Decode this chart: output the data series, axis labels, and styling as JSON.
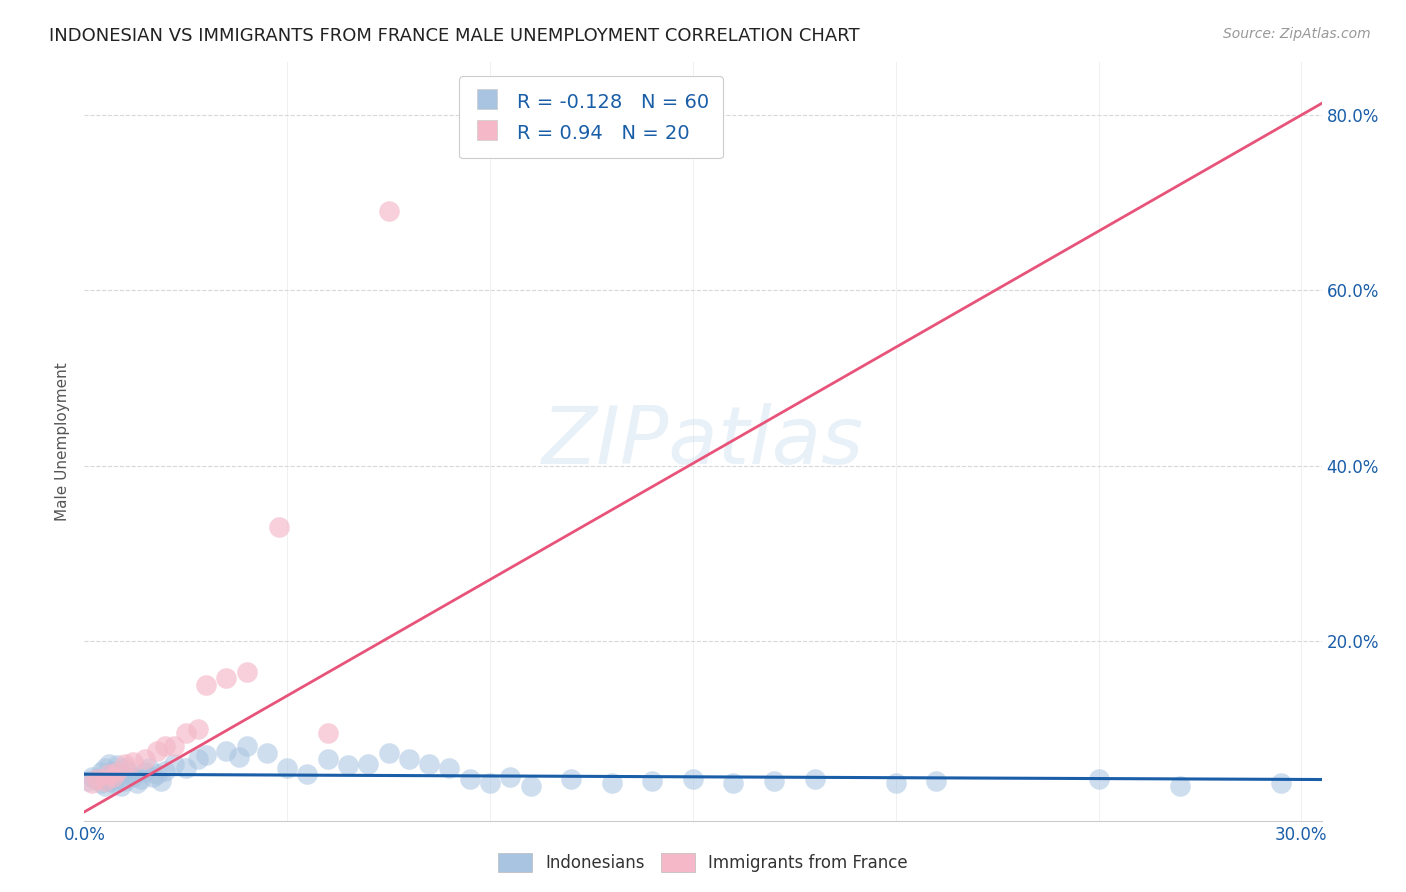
{
  "title": "INDONESIAN VS IMMIGRANTS FROM FRANCE MALE UNEMPLOYMENT CORRELATION CHART",
  "source": "Source: ZipAtlas.com",
  "ylabel": "Male Unemployment",
  "xlim": [
    0.0,
    0.305
  ],
  "ylim": [
    -0.005,
    0.86
  ],
  "background_color": "#ffffff",
  "watermark_text": "ZIPatlas",
  "legend1_label": "R = -0.128   N = 60",
  "legend2_label": "R = 0.940   N = 20",
  "legend_bottom_label1": "Indonesians",
  "legend_bottom_label2": "Immigrants from France",
  "indonesian_color": "#a8c4e0",
  "france_color": "#f4b8c8",
  "indonesian_line_color": "#1a5ea8",
  "france_line_color": "#e8537a",
  "grey_dash_color": "#bbbbbb",
  "grid_color": "#d8d8d8",
  "tick_color": "#1a5ea8",
  "title_color": "#222222",
  "source_color": "#999999",
  "ylabel_color": "#555555",
  "indonesian_R": -0.128,
  "indonesia_N": 60,
  "france_R": 0.94,
  "france_N": 20,
  "blue_slope": -0.02,
  "blue_intercept": 0.048,
  "pink_slope": 2.65,
  "pink_intercept": 0.005,
  "x_indo": [
    0.001,
    0.002,
    0.003,
    0.004,
    0.004,
    0.005,
    0.005,
    0.006,
    0.006,
    0.007,
    0.007,
    0.008,
    0.008,
    0.009,
    0.009,
    0.01,
    0.01,
    0.011,
    0.012,
    0.013,
    0.014,
    0.015,
    0.016,
    0.017,
    0.018,
    0.019,
    0.02,
    0.022,
    0.025,
    0.028,
    0.03,
    0.035,
    0.038,
    0.04,
    0.045,
    0.05,
    0.055,
    0.06,
    0.065,
    0.07,
    0.075,
    0.08,
    0.085,
    0.09,
    0.095,
    0.1,
    0.105,
    0.11,
    0.12,
    0.13,
    0.14,
    0.15,
    0.16,
    0.17,
    0.18,
    0.2,
    0.21,
    0.25,
    0.27,
    0.295
  ],
  "y_indo": [
    0.04,
    0.045,
    0.042,
    0.038,
    0.05,
    0.035,
    0.055,
    0.04,
    0.06,
    0.038,
    0.052,
    0.042,
    0.058,
    0.035,
    0.048,
    0.04,
    0.055,
    0.05,
    0.045,
    0.038,
    0.042,
    0.05,
    0.055,
    0.045,
    0.048,
    0.04,
    0.052,
    0.06,
    0.055,
    0.065,
    0.07,
    0.075,
    0.068,
    0.08,
    0.072,
    0.055,
    0.048,
    0.065,
    0.058,
    0.06,
    0.072,
    0.065,
    0.06,
    0.055,
    0.042,
    0.038,
    0.045,
    0.035,
    0.042,
    0.038,
    0.04,
    0.042,
    0.038,
    0.04,
    0.042,
    0.038,
    0.04,
    0.042,
    0.035,
    0.038
  ],
  "x_france": [
    0.002,
    0.003,
    0.005,
    0.006,
    0.007,
    0.008,
    0.01,
    0.012,
    0.015,
    0.018,
    0.02,
    0.022,
    0.025,
    0.028,
    0.03,
    0.035,
    0.04,
    0.048,
    0.06,
    0.075
  ],
  "y_france": [
    0.038,
    0.042,
    0.04,
    0.048,
    0.045,
    0.05,
    0.06,
    0.062,
    0.065,
    0.075,
    0.08,
    0.08,
    0.095,
    0.1,
    0.15,
    0.158,
    0.165,
    0.33,
    0.095,
    0.69
  ]
}
